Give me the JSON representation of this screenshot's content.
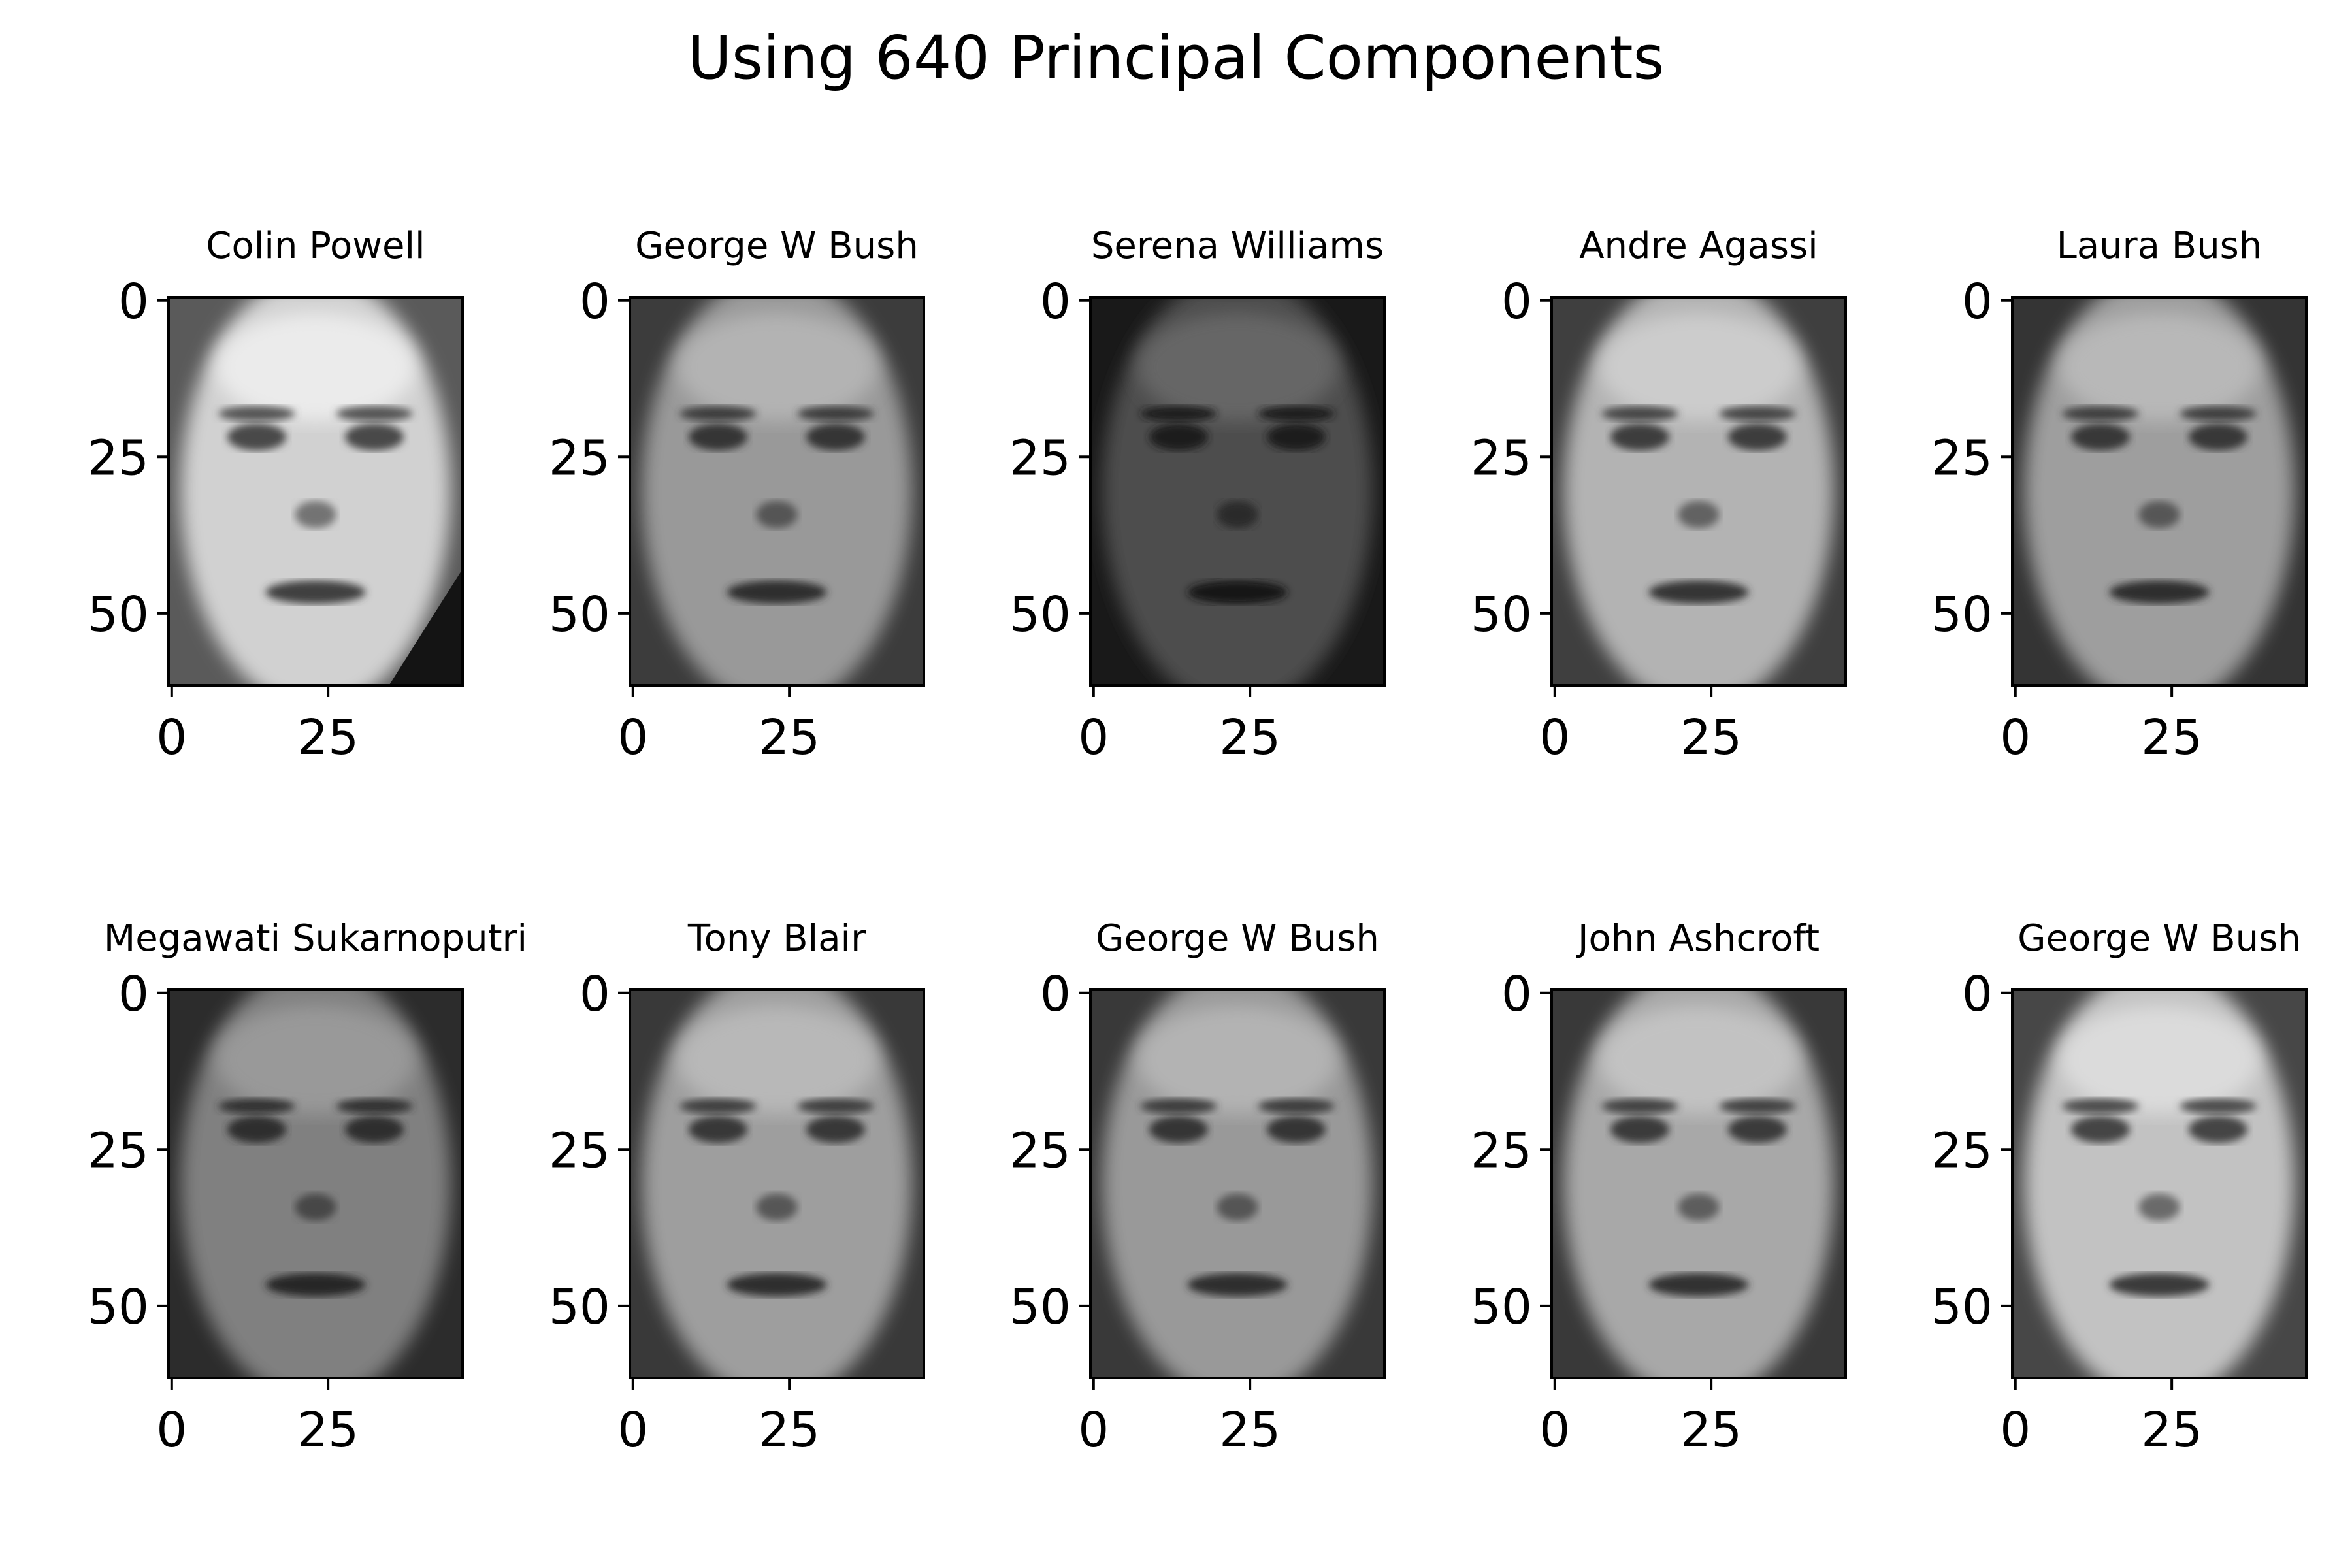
{
  "figure": {
    "title": "Using 640 Principal Components",
    "colormap": "gray"
  },
  "subplots": [
    {
      "title": "Colin Powell",
      "face": {
        "tone": 0.78,
        "skin": 0.82,
        "dark_lower_right": true
      }
    },
    {
      "title": "George W Bush",
      "face": {
        "tone": 0.52,
        "skin": 0.6,
        "dark_lower_right": false
      }
    },
    {
      "title": "Serena Williams",
      "face": {
        "tone": 0.22,
        "skin": 0.3,
        "dark_lower_right": false
      }
    },
    {
      "title": "Andre Agassi",
      "face": {
        "tone": 0.55,
        "skin": 0.7,
        "dark_lower_right": false
      }
    },
    {
      "title": "Laura Bush",
      "face": {
        "tone": 0.45,
        "skin": 0.62,
        "dark_lower_right": false
      }
    },
    {
      "title": "Megawati Sukarnoputri",
      "face": {
        "tone": 0.38,
        "skin": 0.5,
        "dark_lower_right": false
      }
    },
    {
      "title": "Tony Blair",
      "face": {
        "tone": 0.5,
        "skin": 0.62,
        "dark_lower_right": false
      }
    },
    {
      "title": "George W Bush",
      "face": {
        "tone": 0.5,
        "skin": 0.6,
        "dark_lower_right": false
      }
    },
    {
      "title": "John Ashcroft",
      "face": {
        "tone": 0.5,
        "skin": 0.66,
        "dark_lower_right": false
      }
    },
    {
      "title": "George W Bush",
      "face": {
        "tone": 0.62,
        "skin": 0.76,
        "dark_lower_right": false
      }
    }
  ],
  "axes": {
    "x_ticks": [
      0,
      25
    ],
    "y_ticks": [
      0,
      25,
      50
    ],
    "x_range": [
      -0.5,
      46.5
    ],
    "y_range": [
      61.5,
      -0.5
    ]
  }
}
